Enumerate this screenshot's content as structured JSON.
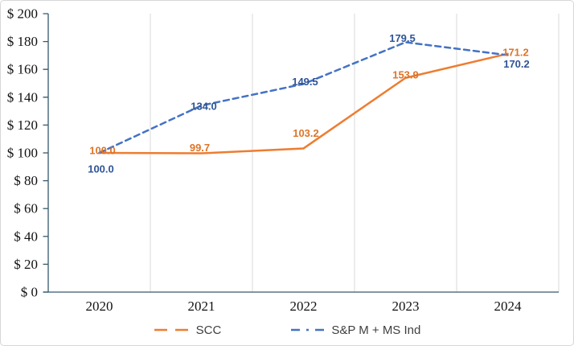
{
  "chart_data": {
    "type": "line",
    "title": "",
    "categories": [
      "2020",
      "2021",
      "2022",
      "2023",
      "2024"
    ],
    "series": [
      {
        "name": "SCC",
        "color": "#ED7D31",
        "label_color": "#DD7428",
        "dash": "solid",
        "values": [
          100.0,
          99.7,
          103.2,
          153.9,
          171.2
        ],
        "labels": [
          "100.0",
          "99.7",
          "103.2",
          "153.9",
          "171.2"
        ],
        "label_offsets": [
          [
            4,
            -3
          ],
          [
            -2,
            -7
          ],
          [
            3,
            -19
          ],
          [
            0,
            -4
          ],
          [
            10,
            -2
          ]
        ]
      },
      {
        "name": "S&P M + MS Ind",
        "color": "#4472C4",
        "label_color": "#2F5496",
        "dash": "7 5",
        "values": [
          100.0,
          134.0,
          149.5,
          179.5,
          170.2
        ],
        "labels": [
          "100.0",
          "134.0",
          "149.5",
          "179.5",
          "170.2"
        ],
        "label_offsets": [
          [
            2,
            20
          ],
          [
            3,
            1
          ],
          [
            2,
            -3
          ],
          [
            -4,
            -5
          ],
          [
            11,
            11
          ]
        ]
      }
    ],
    "xlabel": "",
    "ylabel": "",
    "ylim": [
      0,
      200
    ],
    "ytick_step": 20,
    "ytick_labels": [
      "$ 0",
      "$ 20",
      "$ 40",
      "$ 60",
      "$ 80",
      "$ 100",
      "$ 120",
      "$ 140",
      "$ 160",
      "$ 180",
      "$ 200"
    ],
    "grid": "vertical-only",
    "legend_position": "bottom",
    "axis_color": "#35596B",
    "grid_color": "#D9D9D9",
    "legend_text_color": "#3F3F3F"
  }
}
